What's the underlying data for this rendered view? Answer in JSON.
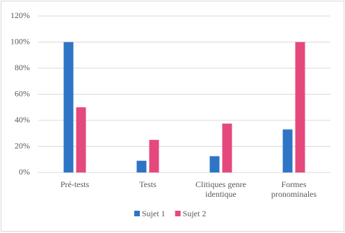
{
  "chart_data": {
    "type": "bar",
    "categories": [
      "Pré-tests",
      "Tests",
      "Clitiques genre identique",
      "Formes pronominales"
    ],
    "series": [
      {
        "name": "Sujet 1",
        "color": "#2e75c5",
        "values": [
          100,
          9,
          12.5,
          33
        ]
      },
      {
        "name": "Sujet 2",
        "color": "#e5497c",
        "values": [
          50,
          25,
          37.5,
          100
        ]
      }
    ],
    "ylim": [
      0,
      120
    ],
    "yticks": [
      {
        "value": 0,
        "label": "0%"
      },
      {
        "value": 20,
        "label": "20%"
      },
      {
        "value": 40,
        "label": "40%"
      },
      {
        "value": 60,
        "label": "60%"
      },
      {
        "value": 80,
        "label": "80%"
      },
      {
        "value": 100,
        "label": "100%"
      },
      {
        "value": 120,
        "label": "120%"
      }
    ],
    "grid": true,
    "legend": "bottom"
  }
}
